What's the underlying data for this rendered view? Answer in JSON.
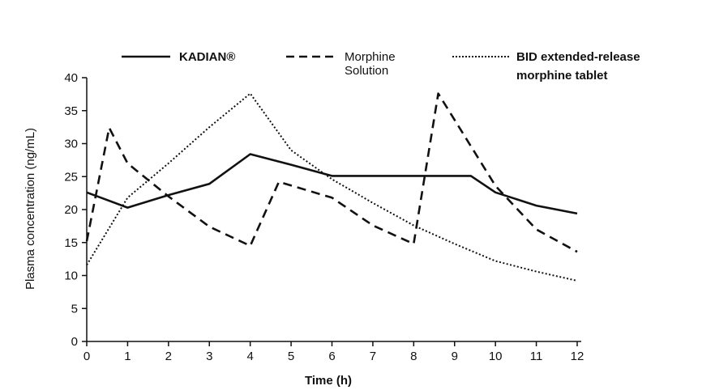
{
  "chart_data": {
    "type": "line",
    "xlabel": "Time  (h)",
    "ylabel": "Plasma concentration (ng/mL)",
    "xlim": [
      0,
      12
    ],
    "ylim": [
      0,
      40
    ],
    "xticks": [
      "0",
      "1",
      "2",
      "3",
      "4",
      "5",
      "6",
      "7",
      "8",
      "9",
      "10",
      "11",
      "12"
    ],
    "yticks": [
      "0",
      "5",
      "10",
      "15",
      "20",
      "25",
      "30",
      "35",
      "40"
    ],
    "grid": false,
    "legend_position": "top",
    "series": [
      {
        "name": "KADIAN®",
        "style": "solid",
        "color": "#111111",
        "points": [
          [
            0,
            22.6
          ],
          [
            1,
            20.3
          ],
          [
            2,
            22.2
          ],
          [
            3,
            23.9
          ],
          [
            4,
            28.4
          ],
          [
            5,
            26.8
          ],
          [
            6,
            25.1
          ],
          [
            7,
            25.1
          ],
          [
            8,
            25.1
          ],
          [
            9.4,
            25.1
          ],
          [
            10,
            22.6
          ],
          [
            11,
            20.6
          ],
          [
            12,
            19.4
          ]
        ]
      },
      {
        "name": "Morphine Solution",
        "name_lines": [
          "Morphine",
          "Solution"
        ],
        "style": "dashed",
        "color": "#111111",
        "points": [
          [
            0,
            15.2
          ],
          [
            0.55,
            32.4
          ],
          [
            1,
            27.0
          ],
          [
            2,
            22.0
          ],
          [
            3,
            17.4
          ],
          [
            4,
            14.5
          ],
          [
            4.7,
            24.2
          ],
          [
            6,
            21.8
          ],
          [
            7,
            17.6
          ],
          [
            8,
            14.8
          ],
          [
            8.6,
            37.6
          ],
          [
            10,
            23.6
          ],
          [
            11,
            17.0
          ],
          [
            12,
            13.6
          ]
        ]
      },
      {
        "name": "BID extended-release morphine tablet",
        "name_lines": [
          "BID extended-release",
          "morphine tablet"
        ],
        "style": "dotted",
        "color": "#111111",
        "points": [
          [
            0,
            11.6
          ],
          [
            1,
            21.8
          ],
          [
            2,
            27.0
          ],
          [
            3,
            32.5
          ],
          [
            4,
            37.6
          ],
          [
            5,
            29.0
          ],
          [
            6,
            24.6
          ],
          [
            7,
            21.0
          ],
          [
            8,
            17.6
          ],
          [
            9,
            14.8
          ],
          [
            10,
            12.2
          ],
          [
            11,
            10.6
          ],
          [
            12,
            9.2
          ]
        ]
      }
    ]
  }
}
